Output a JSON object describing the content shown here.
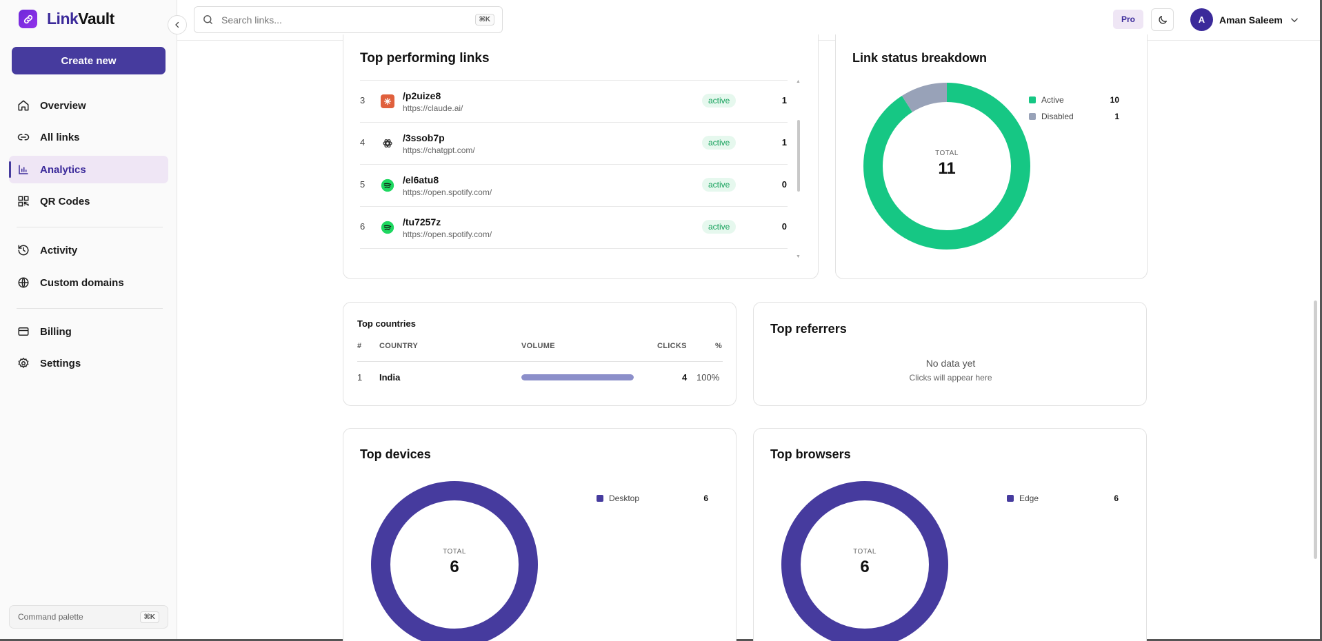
{
  "app": {
    "name_part1": "Link",
    "name_part2": "Vault"
  },
  "sidebar": {
    "create_label": "Create new",
    "items": [
      {
        "label": "Overview",
        "icon": "home-icon"
      },
      {
        "label": "All links",
        "icon": "link-icon"
      },
      {
        "label": "Analytics",
        "icon": "bar-chart-icon",
        "active": true
      },
      {
        "label": "QR Codes",
        "icon": "qr-code-icon"
      },
      {
        "label": "Activity",
        "icon": "history-icon"
      },
      {
        "label": "Custom domains",
        "icon": "globe-icon"
      },
      {
        "label": "Billing",
        "icon": "credit-card-icon"
      },
      {
        "label": "Settings",
        "icon": "gear-icon"
      }
    ],
    "command_palette": {
      "label": "Command palette",
      "shortcut": "⌘K"
    }
  },
  "header": {
    "search": {
      "placeholder": "Search links...",
      "shortcut": "⌘K"
    },
    "plan_badge": "Pro",
    "user": {
      "initial": "A",
      "name": "Aman Saleem"
    }
  },
  "top_links": {
    "title": "Top performing links",
    "rows": [
      {
        "rank": "3",
        "slug": "/p2uize8",
        "url": "https://claude.ai/",
        "status": "active",
        "clicks": "1",
        "favicon": "claude-icon"
      },
      {
        "rank": "4",
        "slug": "/3ssob7p",
        "url": "https://chatgpt.com/",
        "status": "active",
        "clicks": "1",
        "favicon": "openai-icon"
      },
      {
        "rank": "5",
        "slug": "/el6atu8",
        "url": "https://open.spotify.com/",
        "status": "active",
        "clicks": "0",
        "favicon": "spotify-icon"
      },
      {
        "rank": "6",
        "slug": "/tu7257z",
        "url": "https://open.spotify.com/",
        "status": "active",
        "clicks": "0",
        "favicon": "spotify-icon"
      }
    ]
  },
  "link_status": {
    "title": "Link status breakdown",
    "total_label": "TOTAL",
    "total": "11",
    "colors": {
      "active": "#16c784",
      "disabled": "#98a2b8"
    },
    "chart_data": {
      "type": "pie",
      "categories": [
        "Active",
        "Disabled"
      ],
      "values": [
        10,
        1
      ]
    }
  },
  "countries": {
    "title": "Top countries",
    "headers": {
      "rank": "#",
      "country": "COUNTRY",
      "volume": "VOLUME",
      "clicks": "CLICKS",
      "pct": "%"
    },
    "rows": [
      {
        "rank": "1",
        "country": "India",
        "volume_fraction": 1.0,
        "clicks": "4",
        "pct": "100%"
      }
    ]
  },
  "referrers": {
    "title": "Top referrers",
    "empty_title": "No data yet",
    "empty_sub": "Clicks will appear here"
  },
  "devices": {
    "title": "Top devices",
    "total_label": "TOTAL",
    "total": "6",
    "legend": [
      {
        "label": "Desktop",
        "value": "6"
      }
    ],
    "color": "#463b9e"
  },
  "browsers": {
    "title": "Top browsers",
    "total_label": "TOTAL",
    "total": "6",
    "legend": [
      {
        "label": "Edge",
        "value": "6"
      }
    ],
    "color": "#463b9e"
  }
}
